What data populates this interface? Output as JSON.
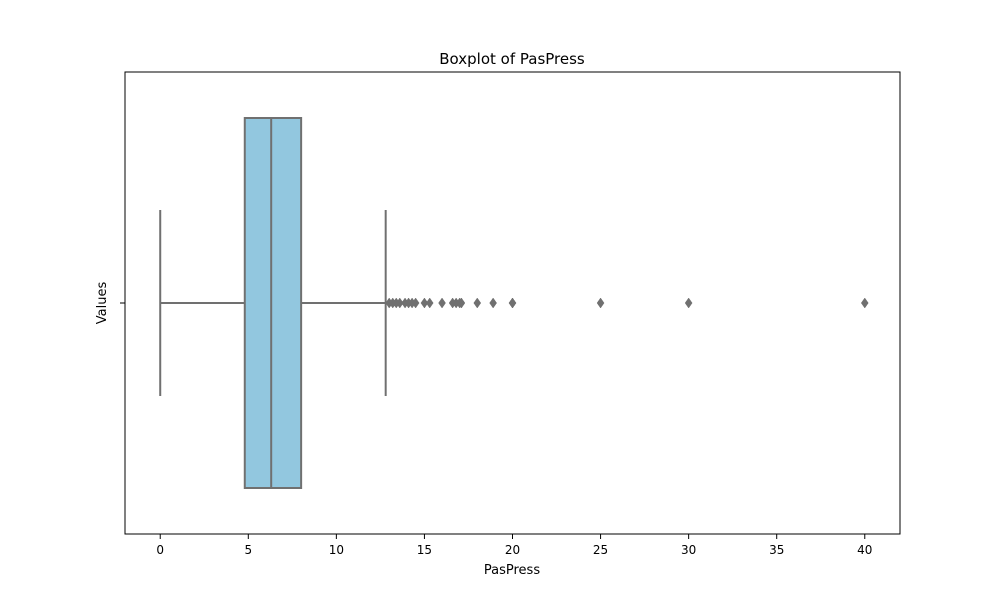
{
  "chart_data": {
    "type": "boxplot",
    "title": "Boxplot of PasPress",
    "xlabel": "PasPress",
    "ylabel": "Values",
    "xlim": [
      -2,
      42
    ],
    "x_ticks": [
      0,
      5,
      10,
      15,
      20,
      25,
      30,
      35,
      40
    ],
    "y_ticks": [
      ""
    ],
    "grid": false,
    "box": {
      "whisker_low": 0,
      "q1": 4.8,
      "median": 6.3,
      "q3": 8.0,
      "whisker_high": 12.8,
      "outliers": [
        13.0,
        13.2,
        13.4,
        13.6,
        13.9,
        14.1,
        14.3,
        14.5,
        15.0,
        15.3,
        16.0,
        16.6,
        16.8,
        17.0,
        17.1,
        18.0,
        18.9,
        20.0,
        20.0,
        25.0,
        30.0,
        40.0
      ]
    },
    "colors": {
      "box_fill": "#92c7df",
      "line": "#707070",
      "axes": "#000000"
    }
  }
}
